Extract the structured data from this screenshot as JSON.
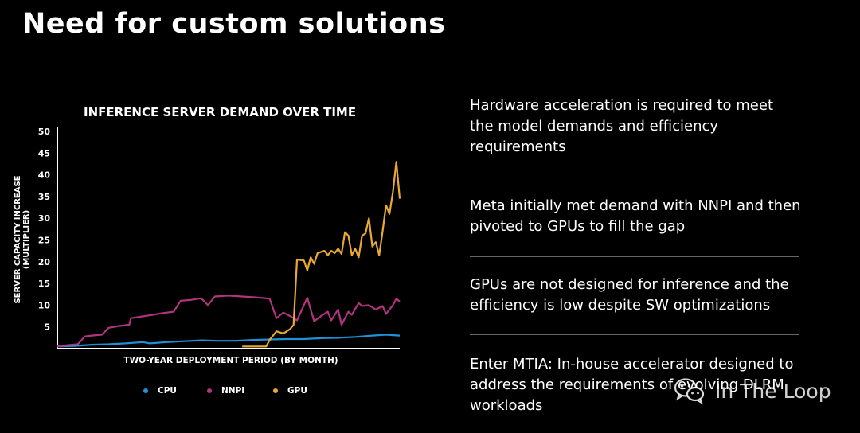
{
  "slide": {
    "title": "Need for custom solutions"
  },
  "chart_data": {
    "type": "line",
    "title": "INFERENCE SERVER DEMAND OVER TIME",
    "xlabel": "TWO-YEAR DEPLOYMENT PERIOD (BY MONTH)",
    "ylabel": "SERVER CAPACITY INCREASE (MULTIPLIER)",
    "ylim": [
      0,
      50
    ],
    "yticks": [
      5,
      10,
      15,
      20,
      25,
      30,
      35,
      40,
      45,
      50
    ],
    "xlim": [
      0,
      100
    ],
    "grid": false,
    "legend_position": "bottom",
    "series": [
      {
        "name": "CPU",
        "color": "#1f8fd6",
        "points": [
          [
            0,
            0.5
          ],
          [
            5,
            0.6
          ],
          [
            10,
            0.9
          ],
          [
            15,
            1.0
          ],
          [
            20,
            1.2
          ],
          [
            25,
            1.5
          ],
          [
            27,
            1.2
          ],
          [
            32,
            1.5
          ],
          [
            37,
            1.7
          ],
          [
            42,
            1.9
          ],
          [
            47,
            1.8
          ],
          [
            52,
            1.8
          ],
          [
            57,
            2.0
          ],
          [
            62,
            2.1
          ],
          [
            67,
            2.2
          ],
          [
            72,
            2.2
          ],
          [
            77,
            2.4
          ],
          [
            82,
            2.5
          ],
          [
            87,
            2.7
          ],
          [
            92,
            3.0
          ],
          [
            96,
            3.2
          ],
          [
            100,
            3.0
          ]
        ]
      },
      {
        "name": "NNPI",
        "color": "#b0347e",
        "points": [
          [
            0,
            0.5
          ],
          [
            3,
            0.8
          ],
          [
            6,
            1.0
          ],
          [
            8,
            2.8
          ],
          [
            10,
            3.0
          ],
          [
            13,
            3.2
          ],
          [
            15,
            4.8
          ],
          [
            18,
            5.2
          ],
          [
            21,
            5.5
          ],
          [
            21.5,
            7.0
          ],
          [
            24,
            7.3
          ],
          [
            28,
            7.8
          ],
          [
            31,
            8.2
          ],
          [
            34,
            8.5
          ],
          [
            36,
            11.0
          ],
          [
            39,
            11.2
          ],
          [
            42,
            11.6
          ],
          [
            44,
            10.0
          ],
          [
            46,
            12.0
          ],
          [
            50,
            12.2
          ],
          [
            54,
            12.0
          ],
          [
            58,
            11.8
          ],
          [
            62,
            11.5
          ],
          [
            64,
            7.0
          ],
          [
            66,
            8.3
          ],
          [
            68,
            7.5
          ],
          [
            70,
            6.5
          ],
          [
            73,
            11.7
          ],
          [
            75,
            6.3
          ],
          [
            77,
            7.5
          ],
          [
            79,
            8.5
          ],
          [
            80,
            6.5
          ],
          [
            82,
            9.0
          ],
          [
            83,
            5.5
          ],
          [
            85,
            8.5
          ],
          [
            86,
            7.8
          ],
          [
            88,
            10.5
          ],
          [
            89,
            9.8
          ],
          [
            91,
            10.0
          ],
          [
            93,
            9.0
          ],
          [
            95,
            9.8
          ],
          [
            96,
            8.0
          ],
          [
            98,
            10.0
          ],
          [
            99,
            11.5
          ],
          [
            100,
            10.8
          ]
        ]
      },
      {
        "name": "GPU",
        "color": "#e8a932",
        "points": [
          [
            54,
            0.5
          ],
          [
            61,
            0.5
          ],
          [
            62,
            2.0
          ],
          [
            63,
            3.0
          ],
          [
            64,
            4.0
          ],
          [
            66,
            3.5
          ],
          [
            67,
            4.0
          ],
          [
            68,
            4.5
          ],
          [
            69,
            5.5
          ],
          [
            70,
            20.5
          ],
          [
            72,
            20.3
          ],
          [
            73,
            18.0
          ],
          [
            74,
            21.0
          ],
          [
            75,
            19.5
          ],
          [
            76,
            22.0
          ],
          [
            78,
            22.5
          ],
          [
            79,
            21.5
          ],
          [
            80,
            22.5
          ],
          [
            81,
            22.0
          ],
          [
            82,
            23.0
          ],
          [
            83,
            21.8
          ],
          [
            84,
            26.8
          ],
          [
            85,
            26.0
          ],
          [
            86,
            21.5
          ],
          [
            87,
            23.0
          ],
          [
            88,
            21.0
          ],
          [
            89,
            26.0
          ],
          [
            90,
            26.5
          ],
          [
            91,
            30.0
          ],
          [
            92,
            23.5
          ],
          [
            93,
            24.5
          ],
          [
            94,
            21.5
          ],
          [
            95,
            27.0
          ],
          [
            96,
            33.0
          ],
          [
            97,
            31.0
          ],
          [
            98,
            36.0
          ],
          [
            99,
            43.0
          ],
          [
            100,
            34.5
          ]
        ]
      }
    ]
  },
  "legend": {
    "items": [
      "CPU",
      "NNPI",
      "GPU"
    ]
  },
  "bullets": [
    "Hardware acceleration is required to meet the model demands and efficiency requirements",
    "Meta initially met demand with NNPI and then pivoted to GPUs to fill the gap",
    "GPUs are not designed for inference and the efficiency is low despite SW optimizations",
    "Enter MTIA: In-house accelerator designed to address the requirements of evolving DLRM workloads"
  ],
  "watermark": {
    "text": "In The Loop",
    "icon": "wechat-icon"
  }
}
